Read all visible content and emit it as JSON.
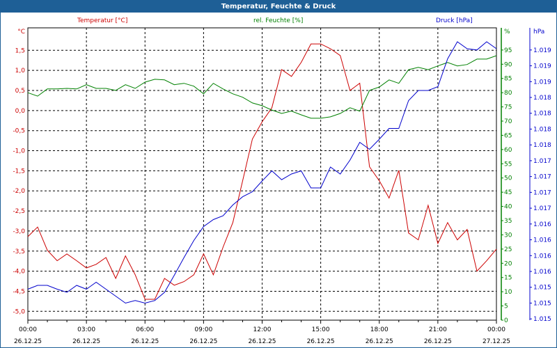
{
  "window": {
    "title": "Temperatur, Feuchte & Druck"
  },
  "chart_data": {
    "type": "line",
    "title": "Temperatur, Feuchte & Druck",
    "x_hours": [
      0,
      0.5,
      1,
      1.5,
      2,
      2.5,
      3,
      3.5,
      4,
      4.5,
      5,
      5.5,
      6,
      6.5,
      7,
      7.5,
      8,
      8.5,
      9,
      9.5,
      10,
      10.5,
      11,
      11.5,
      12,
      12.5,
      13,
      13.5,
      14,
      14.5,
      15,
      15.5,
      16,
      16.5,
      17,
      17.5,
      18,
      18.5,
      19,
      19.5,
      20,
      20.5,
      21,
      21.5,
      22,
      22.5,
      23,
      23.5,
      24
    ],
    "x_ticks": [
      {
        "time": "00:00",
        "date": "26.12.25"
      },
      {
        "time": "03:00",
        "date": "26.12.25"
      },
      {
        "time": "06:00",
        "date": "26.12.25"
      },
      {
        "time": "09:00",
        "date": "26.12.25"
      },
      {
        "time": "12:00",
        "date": "26.12.25"
      },
      {
        "time": "15:00",
        "date": "26.12.25"
      },
      {
        "time": "18:00",
        "date": "26.12.25"
      },
      {
        "time": "21:00",
        "date": "26.12.25"
      },
      {
        "time": "00:00",
        "date": "27.12.25"
      }
    ],
    "grid": true,
    "series": [
      {
        "name": "Temperatur [°C]",
        "unit": "°C",
        "color": "#cc0000",
        "ylim": [
          -5.22,
          2.06
        ],
        "ticks": [
          1.5,
          1.0,
          0.5,
          0.0,
          -0.5,
          -1.0,
          -1.5,
          -2.0,
          -2.5,
          -3.0,
          -3.5,
          -4.0,
          -4.5,
          -5.0
        ],
        "tick_labels": [
          "1,5",
          "1,0",
          "0,5",
          "0,0",
          "-0,5",
          "-1,0",
          "-1,5",
          "-2,0",
          "-2,5",
          "-3,0",
          "-3,5",
          "-4,0",
          "-4,5",
          "-5,0"
        ],
        "values": [
          -3.14,
          -2.9,
          -3.48,
          -3.74,
          -3.57,
          -3.74,
          -3.92,
          -3.83,
          -3.66,
          -4.18,
          -3.62,
          -4.09,
          -4.7,
          -4.7,
          -4.18,
          -4.35,
          -4.26,
          -4.09,
          -3.57,
          -4.09,
          -3.4,
          -2.79,
          -1.75,
          -0.71,
          -0.28,
          0.07,
          1.02,
          0.85,
          1.2,
          1.66,
          1.66,
          1.54,
          1.37,
          0.5,
          0.68,
          -1.4,
          -1.75,
          -2.18,
          -1.49,
          -3.05,
          -3.22,
          -2.36,
          -3.31,
          -2.79,
          -3.22,
          -2.96,
          -4.0,
          -3.74,
          -3.45
        ]
      },
      {
        "name": "rel. Feuchte [%]",
        "unit": "%",
        "color": "#008000",
        "ylim": [
          0,
          102.8
        ],
        "ticks": [
          95,
          90,
          85,
          80,
          75,
          70,
          65,
          60,
          55,
          50,
          45,
          40,
          35,
          30,
          25,
          20,
          15,
          10,
          5,
          0
        ],
        "tick_labels": [
          "95",
          "90",
          "85",
          "80",
          "75",
          "70",
          "65",
          "60",
          "55",
          "50",
          "45",
          "40",
          "35",
          "30",
          "25",
          "20",
          "15",
          "10",
          "5",
          "0"
        ],
        "values": [
          80,
          78.8,
          81.3,
          81.3,
          81.5,
          81.3,
          82.8,
          81.5,
          81.5,
          80.8,
          82.8,
          81.5,
          83.7,
          84.7,
          84.5,
          82.8,
          83.3,
          82.3,
          79.6,
          83.3,
          81.3,
          79.6,
          78.4,
          76.4,
          75.4,
          73.9,
          72.7,
          73.5,
          72.2,
          71.0,
          71.0,
          71.5,
          72.7,
          74.7,
          73.5,
          80.8,
          82.0,
          84.5,
          83.3,
          88.1,
          88.9,
          88.1,
          89.4,
          90.6,
          89.4,
          89.9,
          91.8,
          91.8,
          93.0
        ]
      },
      {
        "name": "Druck [hPa]",
        "unit": "hPa",
        "color": "#0000cc",
        "ylim": [
          1.01478,
          1.0194
        ],
        "ticks": [
          1.0148,
          1.01505,
          1.0153,
          1.01555,
          1.0158,
          1.01605,
          1.0163,
          1.01655,
          1.0168,
          1.01705,
          1.0173,
          1.01755,
          1.0178,
          1.01805,
          1.0183,
          1.01855,
          1.0188,
          1.01905
        ],
        "tick_labels": [
          "1.015",
          "1.015",
          "1.015",
          "1.016",
          "1.016",
          "1.016",
          "1.016",
          "1.017",
          "1.017",
          "1.017",
          "1.017",
          "1.018",
          "1.018",
          "1.018",
          "1.018",
          "1.019",
          "1.019",
          "1.019"
        ],
        "values": [
          1.01527,
          1.01533,
          1.01533,
          1.01527,
          1.01522,
          1.01533,
          1.01527,
          1.01538,
          1.01527,
          1.01516,
          1.01505,
          1.01509,
          1.01505,
          1.01509,
          1.01522,
          1.01549,
          1.01577,
          1.01604,
          1.01626,
          1.01637,
          1.01643,
          1.0166,
          1.01673,
          1.01681,
          1.01698,
          1.01714,
          1.017,
          1.01709,
          1.01714,
          1.01687,
          1.01687,
          1.0172,
          1.01709,
          1.01731,
          1.01759,
          1.01748,
          1.01764,
          1.01781,
          1.01781,
          1.01825,
          1.01841,
          1.01841,
          1.01847,
          1.01891,
          1.01918,
          1.01907,
          1.01905,
          1.01918,
          1.01907
        ]
      }
    ]
  }
}
